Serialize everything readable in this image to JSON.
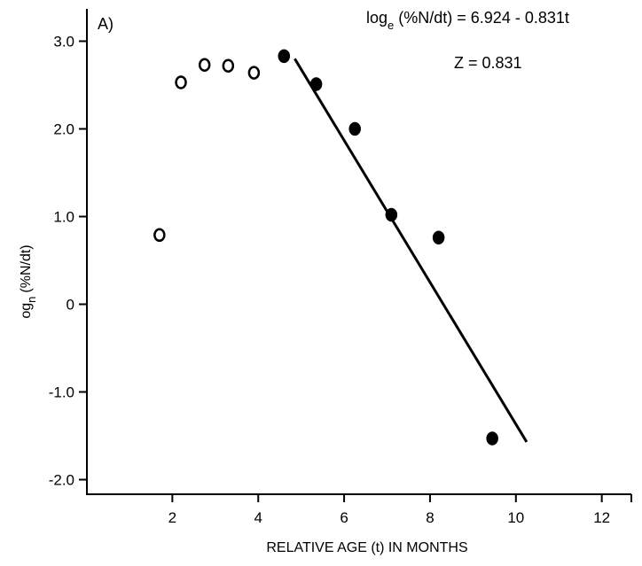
{
  "chart_data": {
    "type": "scatter",
    "panel_label": "A)",
    "xlabel": "RELATIVE AGE (t) IN MONTHS",
    "ylabel": "og",
    "ylabel_subscript": "n",
    "ylabel_rest": "(%N/dt)",
    "xlim": [
      0,
      13
    ],
    "ylim": [
      -2.25,
      3.35
    ],
    "x_ticks": [
      2,
      4,
      6,
      8,
      10,
      12
    ],
    "x_tick_labels": [
      "2",
      "4",
      "6",
      "8",
      "10",
      "12"
    ],
    "y_ticks": [
      3,
      2,
      1,
      0,
      -1,
      -2
    ],
    "y_tick_labels": [
      "3.0",
      "2.0",
      "1.0",
      "0",
      "-1.0",
      "-2.0"
    ],
    "grid": false,
    "series": [
      {
        "marker": "open-circle",
        "points": [
          [
            1.7,
            0.79
          ],
          [
            2.2,
            2.53
          ],
          [
            2.75,
            2.73
          ],
          [
            3.3,
            2.72
          ],
          [
            3.9,
            2.64
          ]
        ]
      },
      {
        "marker": "filled-circle",
        "points": [
          [
            4.6,
            2.83
          ],
          [
            5.35,
            2.51
          ],
          [
            6.25,
            2.0
          ],
          [
            7.1,
            1.02
          ],
          [
            8.2,
            0.76
          ],
          [
            9.45,
            -1.53
          ]
        ]
      }
    ],
    "fit_line": {
      "x": [
        4.85,
        10.25
      ],
      "y": [
        2.8,
        -1.57
      ]
    },
    "annotations": {
      "equation_prefix": "log",
      "equation_sub": "e",
      "equation_rest": " (%N/dt) = 6.924 - 0.831t",
      "z_text": "Z = 0.831"
    }
  }
}
